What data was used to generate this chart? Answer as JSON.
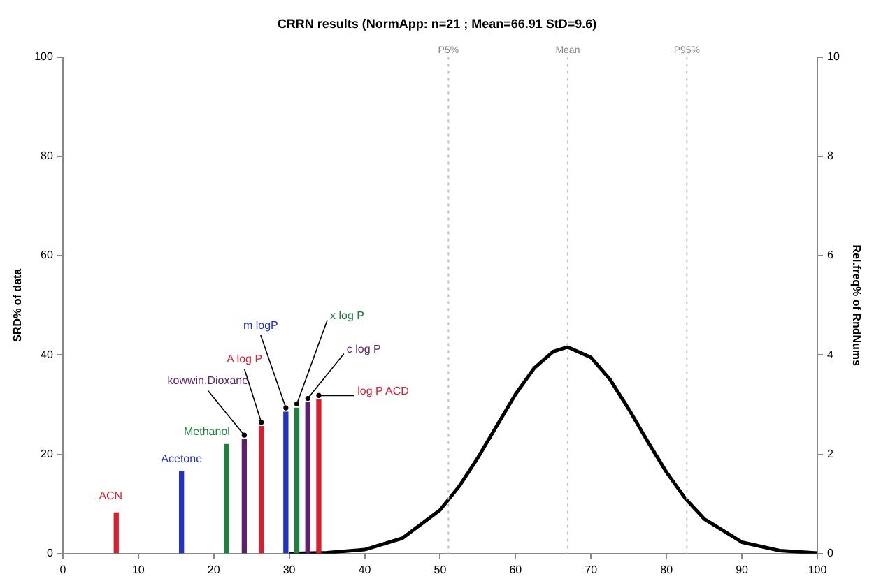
{
  "chart_data": {
    "type": "bar",
    "title": "CRRN results (NormApp: n=21 ; Mean=66.91 StD=9.6)",
    "ylabel": "SRD% of data",
    "y2label": "Rel.freq% of RndNums",
    "xlim": [
      0,
      100
    ],
    "xticks": [
      0,
      10,
      20,
      30,
      40,
      50,
      60,
      70,
      80,
      90,
      100
    ],
    "ylim": [
      0,
      100
    ],
    "yticks": [
      0,
      20,
      40,
      60,
      80,
      100
    ],
    "y2lim": [
      0,
      10
    ],
    "y2ticks": [
      0,
      2,
      4,
      6,
      8,
      10
    ],
    "series": [
      {
        "name": "ACN",
        "color": "#d62030",
        "x": [
          9.3
        ],
        "values": [
          8.2
        ]
      },
      {
        "name": "Acetone",
        "color": "#2030c8",
        "x": [
          17.4
        ],
        "values": [
          16.5
        ]
      },
      {
        "name": "Methanol",
        "color": "#208040",
        "x": [
          22.8
        ],
        "values": [
          22
        ]
      },
      {
        "name": "kowwin,Dioxane",
        "color": "#602070",
        "x": [
          24.6
        ],
        "values": [
          23
        ]
      },
      {
        "name": "A log P",
        "color": "#d62030",
        "x": [
          26.3
        ],
        "values": [
          25.6
        ]
      },
      {
        "name": "m logP",
        "color": "#2030c8",
        "x": [
          29
        ],
        "values": [
          28.5
        ]
      },
      {
        "name": "x log P",
        "color": "#208040",
        "x": [
          29.9
        ],
        "values": [
          29.3
        ]
      },
      {
        "name": "c log P",
        "color": "#602070",
        "x": [
          30.8
        ],
        "values": [
          30.4
        ]
      },
      {
        "name": "log P ACD",
        "color": "#d62030",
        "x": [
          31.7
        ],
        "values": [
          31
        ]
      },
      {
        "type": "line",
        "axis": "y2",
        "color": "#000000",
        "x": [
          30,
          35,
          40,
          45,
          50,
          52.5,
          55,
          57.5,
          60,
          62.5,
          65,
          66.91,
          70,
          72.5,
          75,
          77.5,
          80,
          82.5,
          85,
          90,
          95,
          100
        ],
        "values": [
          0,
          0.02,
          0.08,
          0.31,
          0.88,
          1.35,
          1.93,
          2.57,
          3.21,
          3.74,
          4.07,
          4.16,
          3.95,
          3.51,
          2.91,
          2.26,
          1.64,
          1.11,
          0.7,
          0.23,
          0.06,
          0.01
        ]
      }
    ],
    "ref_lines": [
      {
        "axis": "x",
        "value": 51.1,
        "label": "P5%",
        "color": "#c0c0c0",
        "line_style": "dotted"
      },
      {
        "axis": "x",
        "value": 66.91,
        "label": "Mean",
        "color": "#c0c0c0",
        "line_style": "dotted"
      },
      {
        "axis": "x",
        "value": 82.7,
        "label": "P95%",
        "color": "#c0c0c0",
        "line_style": "dotted"
      }
    ],
    "grid": false,
    "legend": false
  }
}
